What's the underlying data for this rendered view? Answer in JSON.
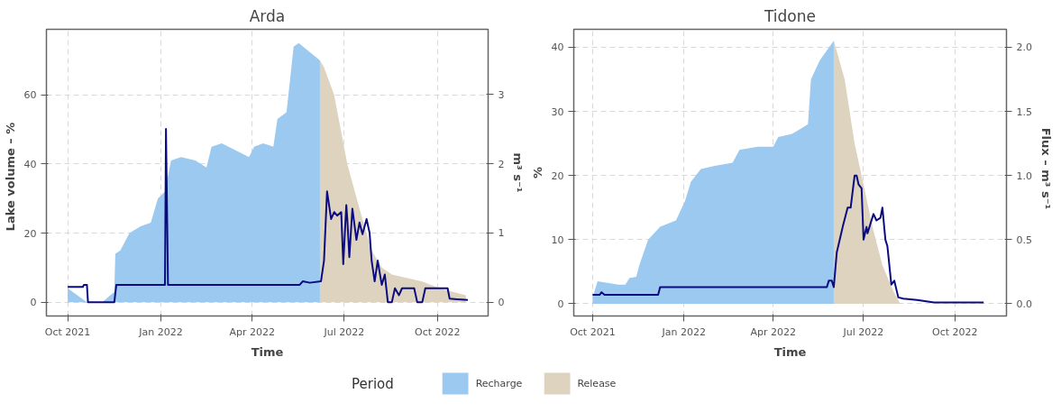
{
  "chart_data": [
    {
      "type": "area",
      "title": "Arda",
      "xlabel": "Time",
      "ylabel": "Lake volume  –  %",
      "y2label": "m³ s⁻¹",
      "legend_title": "Period",
      "legend": "bottom",
      "grid": true,
      "xlim": [
        "2021-09-10",
        "2022-11-20"
      ],
      "xticks": [
        {
          "value": "2021-10-01",
          "label": "Oct 2021"
        },
        {
          "value": "2022-01-01",
          "label": "Jan 2022"
        },
        {
          "value": "2022-04-01",
          "label": "Apr 2022"
        },
        {
          "value": "2022-07-01",
          "label": "Jul 2022"
        },
        {
          "value": "2022-10-01",
          "label": "Oct 2022"
        }
      ],
      "ylim": [
        -4,
        79
      ],
      "yticks": [
        0,
        20,
        40,
        60
      ],
      "y2lim": [
        -0.2,
        3.94
      ],
      "y2ticks": [
        0,
        1,
        2,
        3
      ],
      "series": [
        {
          "name": "Recharge",
          "color": "#9bc9f0",
          "x": [
            "2021-10-01",
            "2021-10-20",
            "2021-11-04",
            "2021-11-16",
            "2021-11-17",
            "2021-11-22",
            "2021-12-01",
            "2021-12-12",
            "2021-12-22",
            "2021-12-29",
            "2022-01-05",
            "2022-01-11",
            "2022-01-21",
            "2022-02-04",
            "2022-02-15",
            "2022-02-20",
            "2022-03-02",
            "2022-03-29",
            "2022-04-03",
            "2022-04-12",
            "2022-04-22",
            "2022-04-26",
            "2022-05-05",
            "2022-05-12",
            "2022-05-17",
            "2022-06-07"
          ],
          "values": [
            4,
            0,
            0,
            3,
            14,
            15,
            20,
            22,
            23,
            30,
            32,
            41,
            42,
            41,
            39,
            45,
            46,
            42,
            45,
            46,
            45,
            53,
            55,
            74,
            75,
            70
          ]
        },
        {
          "name": "Release",
          "color": "#ddd3bf",
          "x": [
            "2022-06-07",
            "2022-06-11",
            "2022-06-21",
            "2022-07-04",
            "2022-07-18",
            "2022-07-28",
            "2022-08-07",
            "2022-08-17",
            "2022-09-16",
            "2022-10-03",
            "2022-10-29"
          ],
          "values": [
            70,
            68,
            60,
            40,
            25,
            15,
            10,
            8,
            6,
            4,
            2
          ]
        },
        {
          "type": "line",
          "axis": "y2",
          "color": "#0b0b80",
          "x": [
            "2021-10-01",
            "2021-10-16",
            "2021-10-17",
            "2021-10-20",
            "2021-10-21",
            "2021-11-16",
            "2021-11-18",
            "2022-01-05",
            "2022-01-06",
            "2022-01-08",
            "2022-05-18",
            "2022-05-21",
            "2022-05-28",
            "2022-06-08",
            "2022-06-11",
            "2022-06-14",
            "2022-06-18",
            "2022-06-21",
            "2022-06-24",
            "2022-06-28",
            "2022-06-30",
            "2022-07-03",
            "2022-07-04",
            "2022-07-06",
            "2022-07-09",
            "2022-07-13",
            "2022-07-16",
            "2022-07-19",
            "2022-07-23",
            "2022-07-26",
            "2022-07-28",
            "2022-07-31",
            "2022-08-03",
            "2022-08-07",
            "2022-08-10",
            "2022-08-13",
            "2022-08-17",
            "2022-08-20",
            "2022-08-24",
            "2022-08-27",
            "2022-09-08",
            "2022-09-11",
            "2022-09-16",
            "2022-09-19",
            "2022-10-11",
            "2022-10-13",
            "2022-10-31"
          ],
          "values": [
            0.22,
            0.22,
            0.25,
            0.25,
            0,
            0,
            0.25,
            0.25,
            2.5,
            0.25,
            0.25,
            0.3,
            0.28,
            0.3,
            0.6,
            1.6,
            1.2,
            1.3,
            1.25,
            1.3,
            0.55,
            1.4,
            1.2,
            0.65,
            1.35,
            0.9,
            1.15,
            0.98,
            1.2,
            1.0,
            0.6,
            0.3,
            0.6,
            0.25,
            0.4,
            0,
            0,
            0.2,
            0.1,
            0.2,
            0.2,
            0,
            0,
            0.2,
            0.2,
            0.05,
            0.03
          ]
        }
      ]
    },
    {
      "type": "area",
      "title": "Tidone",
      "xlabel": "Time",
      "ylabel": "%",
      "y2label": "Flux  –  m³ s⁻¹",
      "grid": true,
      "xlim": [
        "2021-09-12",
        "2022-11-22"
      ],
      "xticks": [
        {
          "value": "2021-10-01",
          "label": "Oct 2021"
        },
        {
          "value": "2022-01-01",
          "label": "Jan 2022"
        },
        {
          "value": "2022-04-01",
          "label": "Apr 2022"
        },
        {
          "value": "2022-07-01",
          "label": "Jul 2022"
        },
        {
          "value": "2022-10-01",
          "label": "Oct 2022"
        }
      ],
      "ylim": [
        -1.9,
        42.8
      ],
      "yticks": [
        0,
        10,
        20,
        30,
        40
      ],
      "y2lim": [
        -0.095,
        2.14
      ],
      "y2ticks": [
        {
          "value": 0,
          "label": "0.0"
        },
        {
          "value": 0.5,
          "label": "0.5"
        },
        {
          "value": 1,
          "label": "1.0"
        },
        {
          "value": 1.5,
          "label": "1.5"
        },
        {
          "value": 2,
          "label": "2.0"
        }
      ],
      "series": [
        {
          "color": "#9bc9f0",
          "x": [
            "2021-10-01",
            "2021-10-06",
            "2021-10-27",
            "2021-11-03",
            "2021-11-07",
            "2021-11-14",
            "2021-11-17",
            "2021-11-26",
            "2021-12-08",
            "2021-12-24",
            "2022-01-02",
            "2022-01-08",
            "2022-01-18",
            "2022-02-01",
            "2022-02-19",
            "2022-02-26",
            "2022-03-16",
            "2022-04-01",
            "2022-04-06",
            "2022-04-20",
            "2022-05-01",
            "2022-05-06",
            "2022-05-09",
            "2022-05-18",
            "2022-06-01"
          ],
          "values": [
            1,
            3.5,
            3,
            3,
            4,
            4.2,
            6,
            10,
            12,
            13,
            16,
            19,
            21,
            21.5,
            22,
            24,
            24.5,
            24.5,
            26,
            26.5,
            27.5,
            28,
            35,
            38,
            41
          ]
        },
        {
          "color": "#ddd3bf",
          "x": [
            "2022-06-01",
            "2022-06-12",
            "2022-06-22",
            "2022-06-29",
            "2022-07-10",
            "2022-07-20",
            "2022-07-31",
            "2022-08-07"
          ],
          "values": [
            41,
            35,
            25,
            20,
            12,
            6,
            2,
            0
          ]
        },
        {
          "type": "line",
          "axis": "y2",
          "color": "#0b0b80",
          "x": [
            "2021-10-01",
            "2021-10-08",
            "2021-10-10",
            "2021-10-13",
            "2021-12-06",
            "2021-12-08",
            "2022-05-25",
            "2022-05-27",
            "2022-05-30",
            "2022-06-01",
            "2022-06-04",
            "2022-06-10",
            "2022-06-15",
            "2022-06-18",
            "2022-06-22",
            "2022-06-24",
            "2022-06-26",
            "2022-06-29",
            "2022-07-01",
            "2022-07-04",
            "2022-07-05",
            "2022-07-11",
            "2022-07-14",
            "2022-07-18",
            "2022-07-20",
            "2022-07-23",
            "2022-07-25",
            "2022-07-29",
            "2022-08-01",
            "2022-08-05",
            "2022-08-10",
            "2022-08-24",
            "2022-09-10",
            "2022-10-30"
          ],
          "values": [
            0.07,
            0.07,
            0.09,
            0.07,
            0.07,
            0.13,
            0.13,
            0.18,
            0.18,
            0.13,
            0.4,
            0.6,
            0.75,
            0.75,
            1.0,
            1.0,
            0.93,
            0.9,
            0.5,
            0.6,
            0.55,
            0.7,
            0.65,
            0.67,
            0.75,
            0.5,
            0.45,
            0.15,
            0.18,
            0.05,
            0.04,
            0.03,
            0.01,
            0.01
          ]
        }
      ]
    }
  ]
}
